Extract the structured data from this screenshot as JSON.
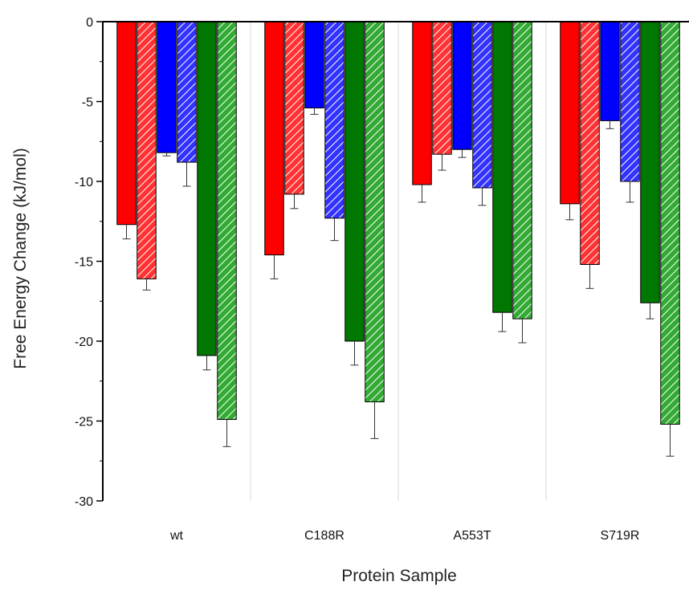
{
  "chart_data": {
    "type": "bar",
    "title": "",
    "xlabel": "Protein Sample",
    "ylabel": "Free Energy Change (kJ/mol)",
    "categories": [
      "wt",
      "C188R",
      "A553T",
      "S719R"
    ],
    "ylim": [
      -30,
      0
    ],
    "yticks": [
      0,
      -5,
      -10,
      -15,
      -20,
      -25,
      -30
    ],
    "grid": false,
    "legend": "none",
    "category_separators": true,
    "series": [
      {
        "color": "#ff0000",
        "hatched": false,
        "values": [
          -12.7,
          -14.6,
          -10.2,
          -11.4
        ],
        "errors": [
          0.9,
          1.5,
          1.1,
          1.0
        ]
      },
      {
        "color": "#ff3333",
        "hatched": true,
        "values": [
          -16.1,
          -10.8,
          -8.3,
          -15.2
        ],
        "errors": [
          0.7,
          0.9,
          1.0,
          1.5
        ]
      },
      {
        "color": "#0000ff",
        "hatched": false,
        "values": [
          -8.2,
          -5.4,
          -8.0,
          -6.2
        ],
        "errors": [
          0.2,
          0.4,
          0.5,
          0.5
        ]
      },
      {
        "color": "#3333ff",
        "hatched": true,
        "values": [
          -8.8,
          -12.3,
          -10.4,
          -10.0
        ],
        "errors": [
          1.5,
          1.4,
          1.1,
          1.3
        ]
      },
      {
        "color": "#007700",
        "hatched": false,
        "values": [
          -20.9,
          -20.0,
          -18.2,
          -17.6
        ],
        "errors": [
          0.9,
          1.5,
          1.2,
          1.0
        ]
      },
      {
        "color": "#33aa33",
        "hatched": true,
        "values": [
          -24.9,
          -23.8,
          -18.6,
          -25.2
        ],
        "errors": [
          1.7,
          2.3,
          1.5,
          2.0
        ]
      }
    ]
  }
}
